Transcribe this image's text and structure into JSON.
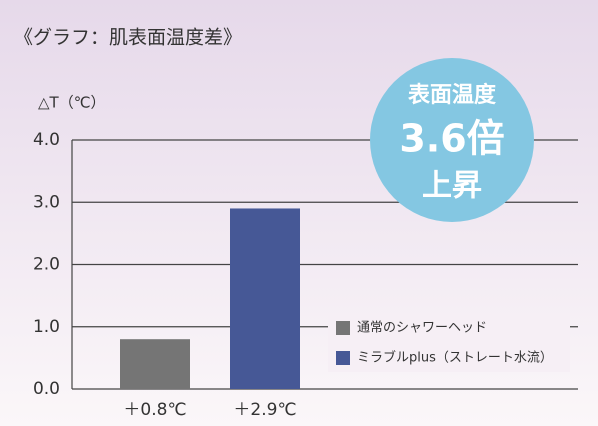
{
  "chart_data": {
    "type": "bar",
    "title": "《グラフ：肌表面温度差》",
    "y_label": "△T（℃）",
    "categories": [
      "＋0.8℃",
      "＋2.9℃"
    ],
    "series": [
      {
        "name": "通常のシャワーヘッド",
        "color": "#757575",
        "values": [
          0.8,
          null
        ]
      },
      {
        "name": "ミラブルplus（ストレート水流）",
        "color": "#465896",
        "values": [
          null,
          2.9
        ]
      }
    ],
    "ylim": [
      0,
      4
    ],
    "yticks": [
      {
        "value": 0,
        "label": "0.0"
      },
      {
        "value": 1,
        "label": "1.0"
      },
      {
        "value": 2,
        "label": "2.0"
      },
      {
        "value": 3,
        "label": "3.0"
      },
      {
        "value": 4,
        "label": "4.0"
      }
    ],
    "grid": true,
    "badge": [
      "表面温度",
      "3.6倍",
      "上昇"
    ]
  }
}
